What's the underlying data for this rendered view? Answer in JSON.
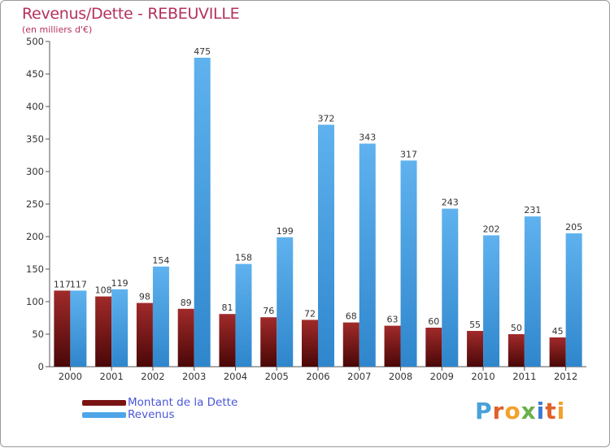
{
  "title": "Revenus/Dette - REBEUVILLE",
  "subtitle": "(en milliers d'€)",
  "colors": {
    "dette": "#7a1414",
    "revenus": "#4ea6e8",
    "title": "#b5315f",
    "legend_text": "#4a56d8"
  },
  "legend": {
    "dette_label": "Montant de la Dette",
    "revenus_label": "Revenus"
  },
  "logo": {
    "text": "Proxiti"
  },
  "chart_data": {
    "type": "bar",
    "title": "Revenus/Dette - REBEUVILLE",
    "ylabel": "(en milliers d'€)",
    "xlabel": "",
    "ylim": [
      0,
      500
    ],
    "yticks": [
      0,
      50,
      100,
      150,
      200,
      250,
      300,
      350,
      400,
      450,
      500
    ],
    "categories": [
      "2000",
      "2001",
      "2002",
      "2003",
      "2004",
      "2005",
      "2006",
      "2007",
      "2008",
      "2009",
      "2010",
      "2011",
      "2012"
    ],
    "series": [
      {
        "name": "Montant de la Dette",
        "values": [
          117,
          108,
          98,
          89,
          81,
          76,
          72,
          68,
          63,
          60,
          55,
          50,
          45
        ]
      },
      {
        "name": "Revenus",
        "values": [
          117,
          119,
          154,
          475,
          158,
          199,
          372,
          343,
          317,
          243,
          202,
          231,
          205
        ]
      }
    ],
    "legend_position": "bottom-left",
    "grid": false
  }
}
